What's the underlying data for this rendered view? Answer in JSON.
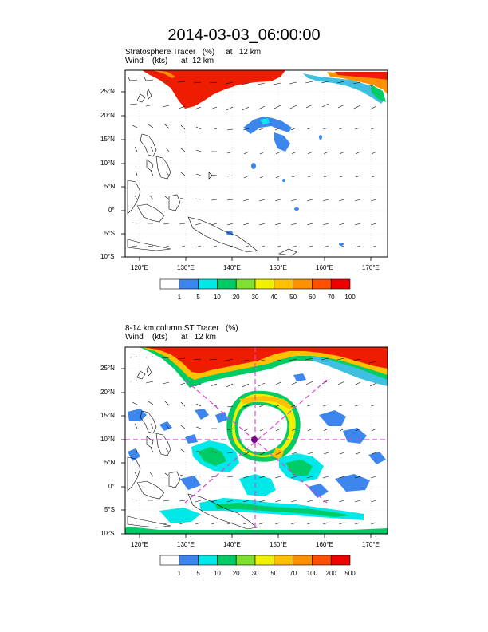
{
  "title": "2014-03-03_06:00:00",
  "panels": [
    {
      "subtitle_line1": "Stratosphere Tracer   (%)     at   12 km",
      "subtitle_line2": "Wind    (kts)      at  12 km",
      "lat_labels": [
        "25°N",
        "20°N",
        "15°N",
        "10°N",
        "5°N",
        "0°",
        "5°S",
        "10°S"
      ],
      "lon_labels": [
        "120°E",
        "130°E",
        "140°E",
        "150°E",
        "160°E",
        "170°E"
      ],
      "colorbar_labels": [
        "1",
        "5",
        "10",
        "20",
        "30",
        "40",
        "50",
        "60",
        "70",
        "100"
      ],
      "colorbar_colors": [
        "#ffffff",
        "#3d86ee",
        "#00e8e8",
        "#00cc66",
        "#80e030",
        "#f0f000",
        "#ffc000",
        "#ff9000",
        "#ff5000",
        "#ee0000"
      ]
    },
    {
      "subtitle_line1": "8-14 km column ST Tracer   (%)",
      "subtitle_line2": "Wind    (kts)      at   12 km",
      "lat_labels": [
        "25°N",
        "20°N",
        "15°N",
        "10°N",
        "5°N",
        "0°",
        "5°S",
        "10°S"
      ],
      "lon_labels": [
        "120°E",
        "130°E",
        "140°E",
        "150°E",
        "160°E",
        "170°E"
      ],
      "colorbar_labels": [
        "1",
        "5",
        "10",
        "20",
        "30",
        "50",
        "70",
        "100",
        "200",
        "500"
      ],
      "colorbar_colors": [
        "#ffffff",
        "#3d86ee",
        "#00e8e8",
        "#00cc66",
        "#80e030",
        "#f0f000",
        "#ffc000",
        "#ff9000",
        "#ff5000",
        "#ee0000"
      ]
    }
  ]
}
